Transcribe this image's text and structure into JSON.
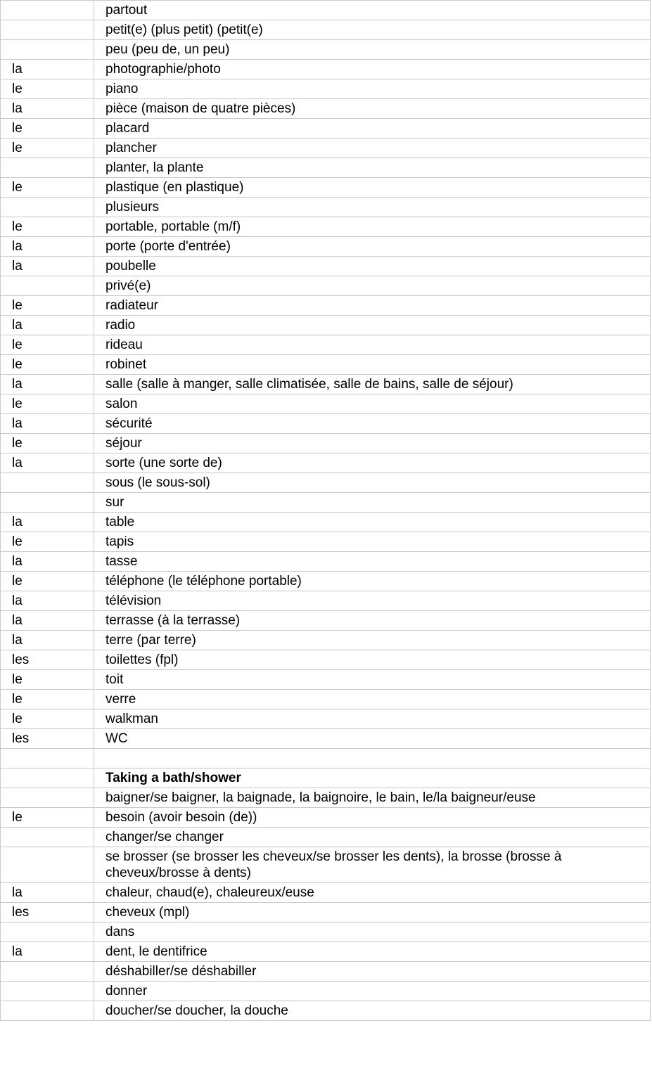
{
  "colors": {
    "background": "#ffffff",
    "border": "#c9c9c9",
    "text": "#000000"
  },
  "table": {
    "columns": [
      "article",
      "term"
    ],
    "section_header": "Taking a bath/shower",
    "rows": [
      {
        "article": "",
        "term": "partout",
        "bold": false
      },
      {
        "article": "",
        "term": "petit(e) (plus petit) (petit(e)",
        "bold": false
      },
      {
        "article": "",
        "term": "peu (peu de, un peu)",
        "bold": false
      },
      {
        "article": "la",
        "term": "photographie/photo",
        "bold": false
      },
      {
        "article": "le",
        "term": "piano",
        "bold": false
      },
      {
        "article": "la",
        "term": "pièce (maison de quatre pièces)",
        "bold": false
      },
      {
        "article": "le",
        "term": "placard",
        "bold": false
      },
      {
        "article": "le",
        "term": "plancher",
        "bold": false
      },
      {
        "article": "",
        "term": "planter, la plante",
        "bold": false
      },
      {
        "article": "le",
        "term": "plastique (en plastique)",
        "bold": false
      },
      {
        "article": "",
        "term": "plusieurs",
        "bold": false
      },
      {
        "article": "le",
        "term": "portable, portable (m/f)",
        "bold": false
      },
      {
        "article": "la",
        "term": "porte (porte d'entrée)",
        "bold": false
      },
      {
        "article": "la",
        "term": "poubelle",
        "bold": false
      },
      {
        "article": "",
        "term": "privé(e)",
        "bold": false
      },
      {
        "article": "le",
        "term": "radiateur",
        "bold": false
      },
      {
        "article": "la",
        "term": "radio",
        "bold": false
      },
      {
        "article": "le",
        "term": "rideau",
        "bold": false
      },
      {
        "article": "le",
        "term": "robinet",
        "bold": false
      },
      {
        "article": "la",
        "term": "salle (salle à manger, salle climatisée, salle de bains, salle de séjour)",
        "bold": false
      },
      {
        "article": "le",
        "term": "salon",
        "bold": false
      },
      {
        "article": "la",
        "term": "sécurité",
        "bold": false
      },
      {
        "article": "le",
        "term": "séjour",
        "bold": false
      },
      {
        "article": "la",
        "term": "sorte (une sorte de)",
        "bold": false
      },
      {
        "article": "",
        "term": "sous (le sous-sol)",
        "bold": false
      },
      {
        "article": "",
        "term": "sur",
        "bold": false
      },
      {
        "article": "la",
        "term": "table",
        "bold": false
      },
      {
        "article": "le",
        "term": "tapis",
        "bold": false
      },
      {
        "article": "la",
        "term": "tasse",
        "bold": false
      },
      {
        "article": "le",
        "term": "téléphone (le téléphone portable)",
        "bold": false
      },
      {
        "article": "la",
        "term": "télévision",
        "bold": false
      },
      {
        "article": "la",
        "term": "terrasse (à la terrasse)",
        "bold": false
      },
      {
        "article": "la",
        "term": "terre (par terre)",
        "bold": false
      },
      {
        "article": "les",
        "term": "toilettes (fpl)",
        "bold": false
      },
      {
        "article": "le",
        "term": "toit",
        "bold": false
      },
      {
        "article": "le",
        "term": "verre",
        "bold": false
      },
      {
        "article": "le",
        "term": "walkman",
        "bold": false
      },
      {
        "article": "les",
        "term": "WC",
        "bold": false
      },
      {
        "article": "",
        "term": "",
        "bold": false
      },
      {
        "article": "",
        "term": "Taking a bath/shower",
        "bold": true
      },
      {
        "article": "",
        "term": "baigner/se baigner, la baignade, la baignoire, le bain, le/la baigneur/euse",
        "bold": false
      },
      {
        "article": "le",
        "term": "besoin (avoir besoin (de))",
        "bold": false
      },
      {
        "article": "",
        "term": "changer/se changer",
        "bold": false
      },
      {
        "article": "",
        "term": "se brosser (se brosser les cheveux/se brosser les dents), la brosse (brosse à cheveux/brosse à dents)",
        "bold": false
      },
      {
        "article": "la",
        "term": "chaleur, chaud(e), chaleureux/euse",
        "bold": false
      },
      {
        "article": "les",
        "term": "cheveux (mpl)",
        "bold": false
      },
      {
        "article": "",
        "term": "dans",
        "bold": false
      },
      {
        "article": "la",
        "term": "dent, le dentifrice",
        "bold": false
      },
      {
        "article": "",
        "term": "déshabiller/se déshabiller",
        "bold": false
      },
      {
        "article": "",
        "term": "donner",
        "bold": false
      },
      {
        "article": "",
        "term": "doucher/se doucher, la douche",
        "bold": false
      }
    ]
  }
}
